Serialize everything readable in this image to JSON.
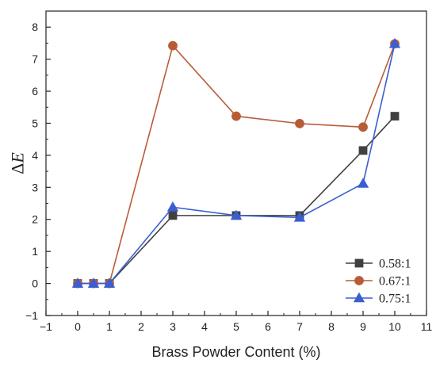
{
  "chart_data": {
    "type": "line",
    "xlabel": "Brass Powder Content (%)",
    "ylabel_prefix": "Δ",
    "ylabel_var": "E",
    "xlim": [
      -1,
      11
    ],
    "ylim": [
      -1,
      8.5
    ],
    "x_ticks": [
      -1,
      0,
      1,
      2,
      3,
      4,
      5,
      6,
      7,
      8,
      9,
      10,
      11
    ],
    "y_ticks": [
      -1,
      0,
      1,
      2,
      3,
      4,
      5,
      6,
      7,
      8
    ],
    "legend_position": "bottom-right",
    "grid": false,
    "series": [
      {
        "name": "0.58:1",
        "color": "#404040",
        "marker": "square",
        "x": [
          0,
          0.5,
          1,
          3,
          5,
          7,
          9,
          10
        ],
        "y": [
          0,
          0,
          0,
          2.12,
          2.12,
          2.12,
          4.15,
          5.22
        ]
      },
      {
        "name": "0.67:1",
        "color": "#b85c38",
        "marker": "circle",
        "x": [
          0,
          0.5,
          1,
          3,
          5,
          7,
          9,
          10
        ],
        "y": [
          0,
          0,
          0,
          7.42,
          5.22,
          4.99,
          4.88,
          7.48
        ]
      },
      {
        "name": "0.75:1",
        "color": "#3a5fd0",
        "marker": "triangle",
        "x": [
          0,
          0.5,
          1,
          3,
          5,
          7,
          9,
          10
        ],
        "y": [
          0,
          0,
          0,
          2.38,
          2.12,
          2.06,
          3.12,
          7.48
        ]
      }
    ]
  }
}
